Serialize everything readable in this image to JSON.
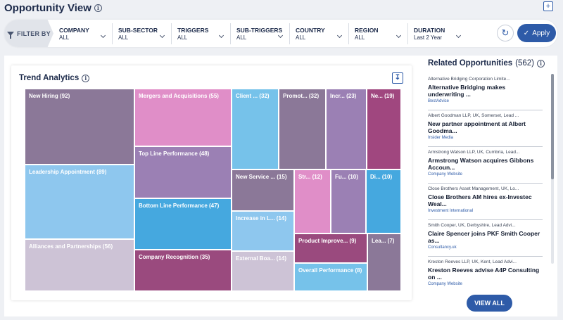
{
  "header": {
    "title": "Opportunity View",
    "title_info_icon": "info-icon",
    "corner_icon": "add-icon"
  },
  "filters": {
    "label": "FILTER BY",
    "items": [
      {
        "label": "COMPANY",
        "value": "ALL"
      },
      {
        "label": "SUB-SECTOR",
        "value": "ALL"
      },
      {
        "label": "TRIGGERS",
        "value": "ALL"
      },
      {
        "label": "SUB-TRIGGERS",
        "value": "ALL"
      },
      {
        "label": "COUNTRY",
        "value": "ALL"
      },
      {
        "label": "REGION",
        "value": "ALL"
      },
      {
        "label": "DURATION",
        "value": "Last 2 Year"
      }
    ],
    "reset_icon": "refresh-icon",
    "apply_label": "Apply"
  },
  "trend": {
    "title": "Trend Analytics",
    "download_icon": "download-icon",
    "tiles": [
      {
        "label": "New Hiring",
        "count": 92,
        "color": "#8b7898"
      },
      {
        "label": "Leadership Appointment",
        "count": 89,
        "color": "#8ec7ee"
      },
      {
        "label": "Alliances and Partnerships",
        "count": 56,
        "color": "#cdc3d6"
      },
      {
        "label": "Mergers and Acquisitions",
        "count": 55,
        "color": "#e08ec8"
      },
      {
        "label": "Top Line Performance",
        "count": 48,
        "color": "#9b80b4"
      },
      {
        "label": "Bottom Line Performance",
        "count": 47,
        "color": "#45a8df"
      },
      {
        "label": "Company Recognition",
        "count": 35,
        "color": "#9a4a7e"
      },
      {
        "label": "Client ...",
        "count": 32,
        "color": "#76c2ea"
      },
      {
        "label": "Promot...",
        "count": 32,
        "color": "#8b7898"
      },
      {
        "label": "Incr...",
        "count": 23,
        "color": "#9b80b4"
      },
      {
        "label": "Ne...",
        "count": 19,
        "color": "#a0477f"
      },
      {
        "label": "New Service ...",
        "count": 15,
        "color": "#8b7898"
      },
      {
        "label": "Str...",
        "count": 12,
        "color": "#e08ec8"
      },
      {
        "label": "Fu...",
        "count": 10,
        "color": "#9b80b4"
      },
      {
        "label": "Di...",
        "count": 10,
        "color": "#45a8df"
      },
      {
        "label": "Increase in L...",
        "count": 14,
        "color": "#8ec7ee"
      },
      {
        "label": "External Boa...",
        "count": 14,
        "color": "#cdc3d6"
      },
      {
        "label": "Product Improve...",
        "count": 9,
        "color": "#9a4a7e"
      },
      {
        "label": "Overall Performance",
        "count": 8,
        "color": "#76c2ea"
      },
      {
        "label": "Lea...",
        "count": 7,
        "color": "#8b7898"
      }
    ]
  },
  "related": {
    "title": "Related Opportunities",
    "count_text": "(562)",
    "items": [
      {
        "meta": "Alternative Bridging Corporation Limite...",
        "headline": "Alternative Bridging makes underwriting ...",
        "source": "BestAdvice"
      },
      {
        "meta": "Albert Goodman LLP, UK, Somerset, Lead ...",
        "headline": "New partner appointment at Albert Goodma...",
        "source": "Insider Media"
      },
      {
        "meta": "Armstrong Watson LLP, UK, Cumbria, Lead...",
        "headline": "Armstrong Watson acquires Gibbons Accoun...",
        "source": "Company Website"
      },
      {
        "meta": "Close Brothers Asset Management, UK, Lo...",
        "headline": "Close Brothers AM hires ex-Investec Weal...",
        "source": "Investment International"
      },
      {
        "meta": "Smith Cooper, UK, Derbyshire, Lead Advi...",
        "headline": "Claire Spencer joins PKF Smith Cooper as...",
        "source": "Consultancy.uk"
      },
      {
        "meta": "Kreston Reeves LLP, UK, Kent, Lead Advi...",
        "headline": "Kreston Reeves advise A4P Consulting on ...",
        "source": "Company Website"
      }
    ],
    "view_all_label": "VIEW ALL"
  }
}
